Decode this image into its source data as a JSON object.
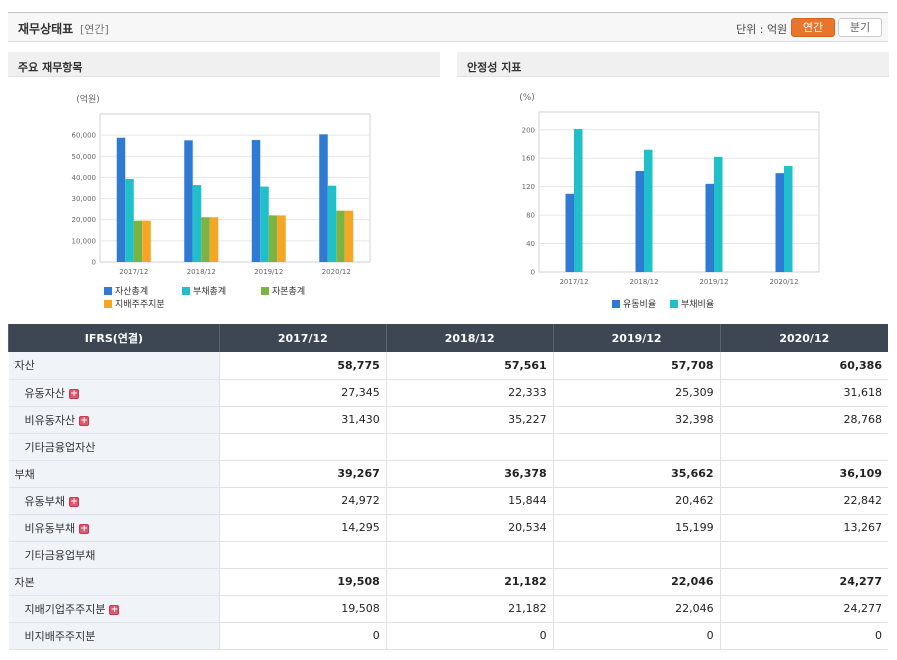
{
  "header": {
    "title": "재무상태표",
    "subtitle": "[연간]",
    "unit_label": "단위 : 억원",
    "annual_label": "연간",
    "quarter_label": "분기",
    "accent_color": "#e8752b"
  },
  "left_panel": {
    "title": "주요 재무항목"
  },
  "right_panel": {
    "title": "안정성 지표"
  },
  "chart_data": [
    {
      "type": "bar",
      "unit": "(억원)",
      "categories": [
        "2017/12",
        "2018/12",
        "2019/12",
        "2020/12"
      ],
      "ylim": [
        0,
        70000
      ],
      "yticks": [
        "0",
        "10,000",
        "20,000",
        "30,000",
        "40,000",
        "50,000",
        "60,000"
      ],
      "series": [
        {
          "name": "자산총계",
          "color": "#2f7ad3",
          "values": [
            58775,
            57561,
            57708,
            60386
          ]
        },
        {
          "name": "부채총계",
          "color": "#1fc0c9",
          "values": [
            39267,
            36378,
            35662,
            36109
          ]
        },
        {
          "name": "자본총계",
          "color": "#7cb342",
          "values": [
            19508,
            21182,
            22046,
            24277
          ]
        },
        {
          "name": "지배주주지분",
          "color": "#f5a623",
          "values": [
            19508,
            21182,
            22046,
            24277
          ]
        }
      ]
    },
    {
      "type": "bar",
      "unit": "(%)",
      "categories": [
        "2017/12",
        "2018/12",
        "2019/12",
        "2020/12"
      ],
      "ylim": [
        0,
        225
      ],
      "yticks": [
        "0",
        "40",
        "80",
        "120",
        "160",
        "200"
      ],
      "series": [
        {
          "name": "유동비율",
          "color": "#2f7ad3",
          "values": [
            110,
            142,
            124,
            139
          ]
        },
        {
          "name": "부채비율",
          "color": "#1fc0c9",
          "values": [
            201,
            172,
            162,
            149
          ]
        }
      ]
    }
  ],
  "table": {
    "header": [
      "IFRS(연결)",
      "2017/12",
      "2018/12",
      "2019/12",
      "2020/12"
    ],
    "rows": [
      {
        "label": "자산",
        "values": [
          "58,775",
          "57,561",
          "57,708",
          "60,386"
        ]
      },
      {
        "label": "유동자산",
        "values": [
          "27,345",
          "22,333",
          "25,309",
          "31,618"
        ]
      },
      {
        "label": "비유동자산",
        "values": [
          "31,430",
          "35,227",
          "32,398",
          "28,768"
        ]
      },
      {
        "label": "기타금융업자산",
        "values": [
          "",
          "",
          "",
          ""
        ]
      },
      {
        "label": "부채",
        "values": [
          "39,267",
          "36,378",
          "35,662",
          "36,109"
        ]
      },
      {
        "label": "유동부채",
        "values": [
          "24,972",
          "15,844",
          "20,462",
          "22,842"
        ]
      },
      {
        "label": "비유동부채",
        "values": [
          "14,295",
          "20,534",
          "15,199",
          "13,267"
        ]
      },
      {
        "label": "기타금융업부채",
        "values": [
          "",
          "",
          "",
          ""
        ]
      },
      {
        "label": "자본",
        "values": [
          "19,508",
          "21,182",
          "22,046",
          "24,277"
        ]
      },
      {
        "label": "지배기업주주지분",
        "values": [
          "19,508",
          "21,182",
          "22,046",
          "24,277"
        ]
      },
      {
        "label": "비지배주주지분",
        "values": [
          "0",
          "0",
          "0",
          "0"
        ]
      }
    ]
  }
}
